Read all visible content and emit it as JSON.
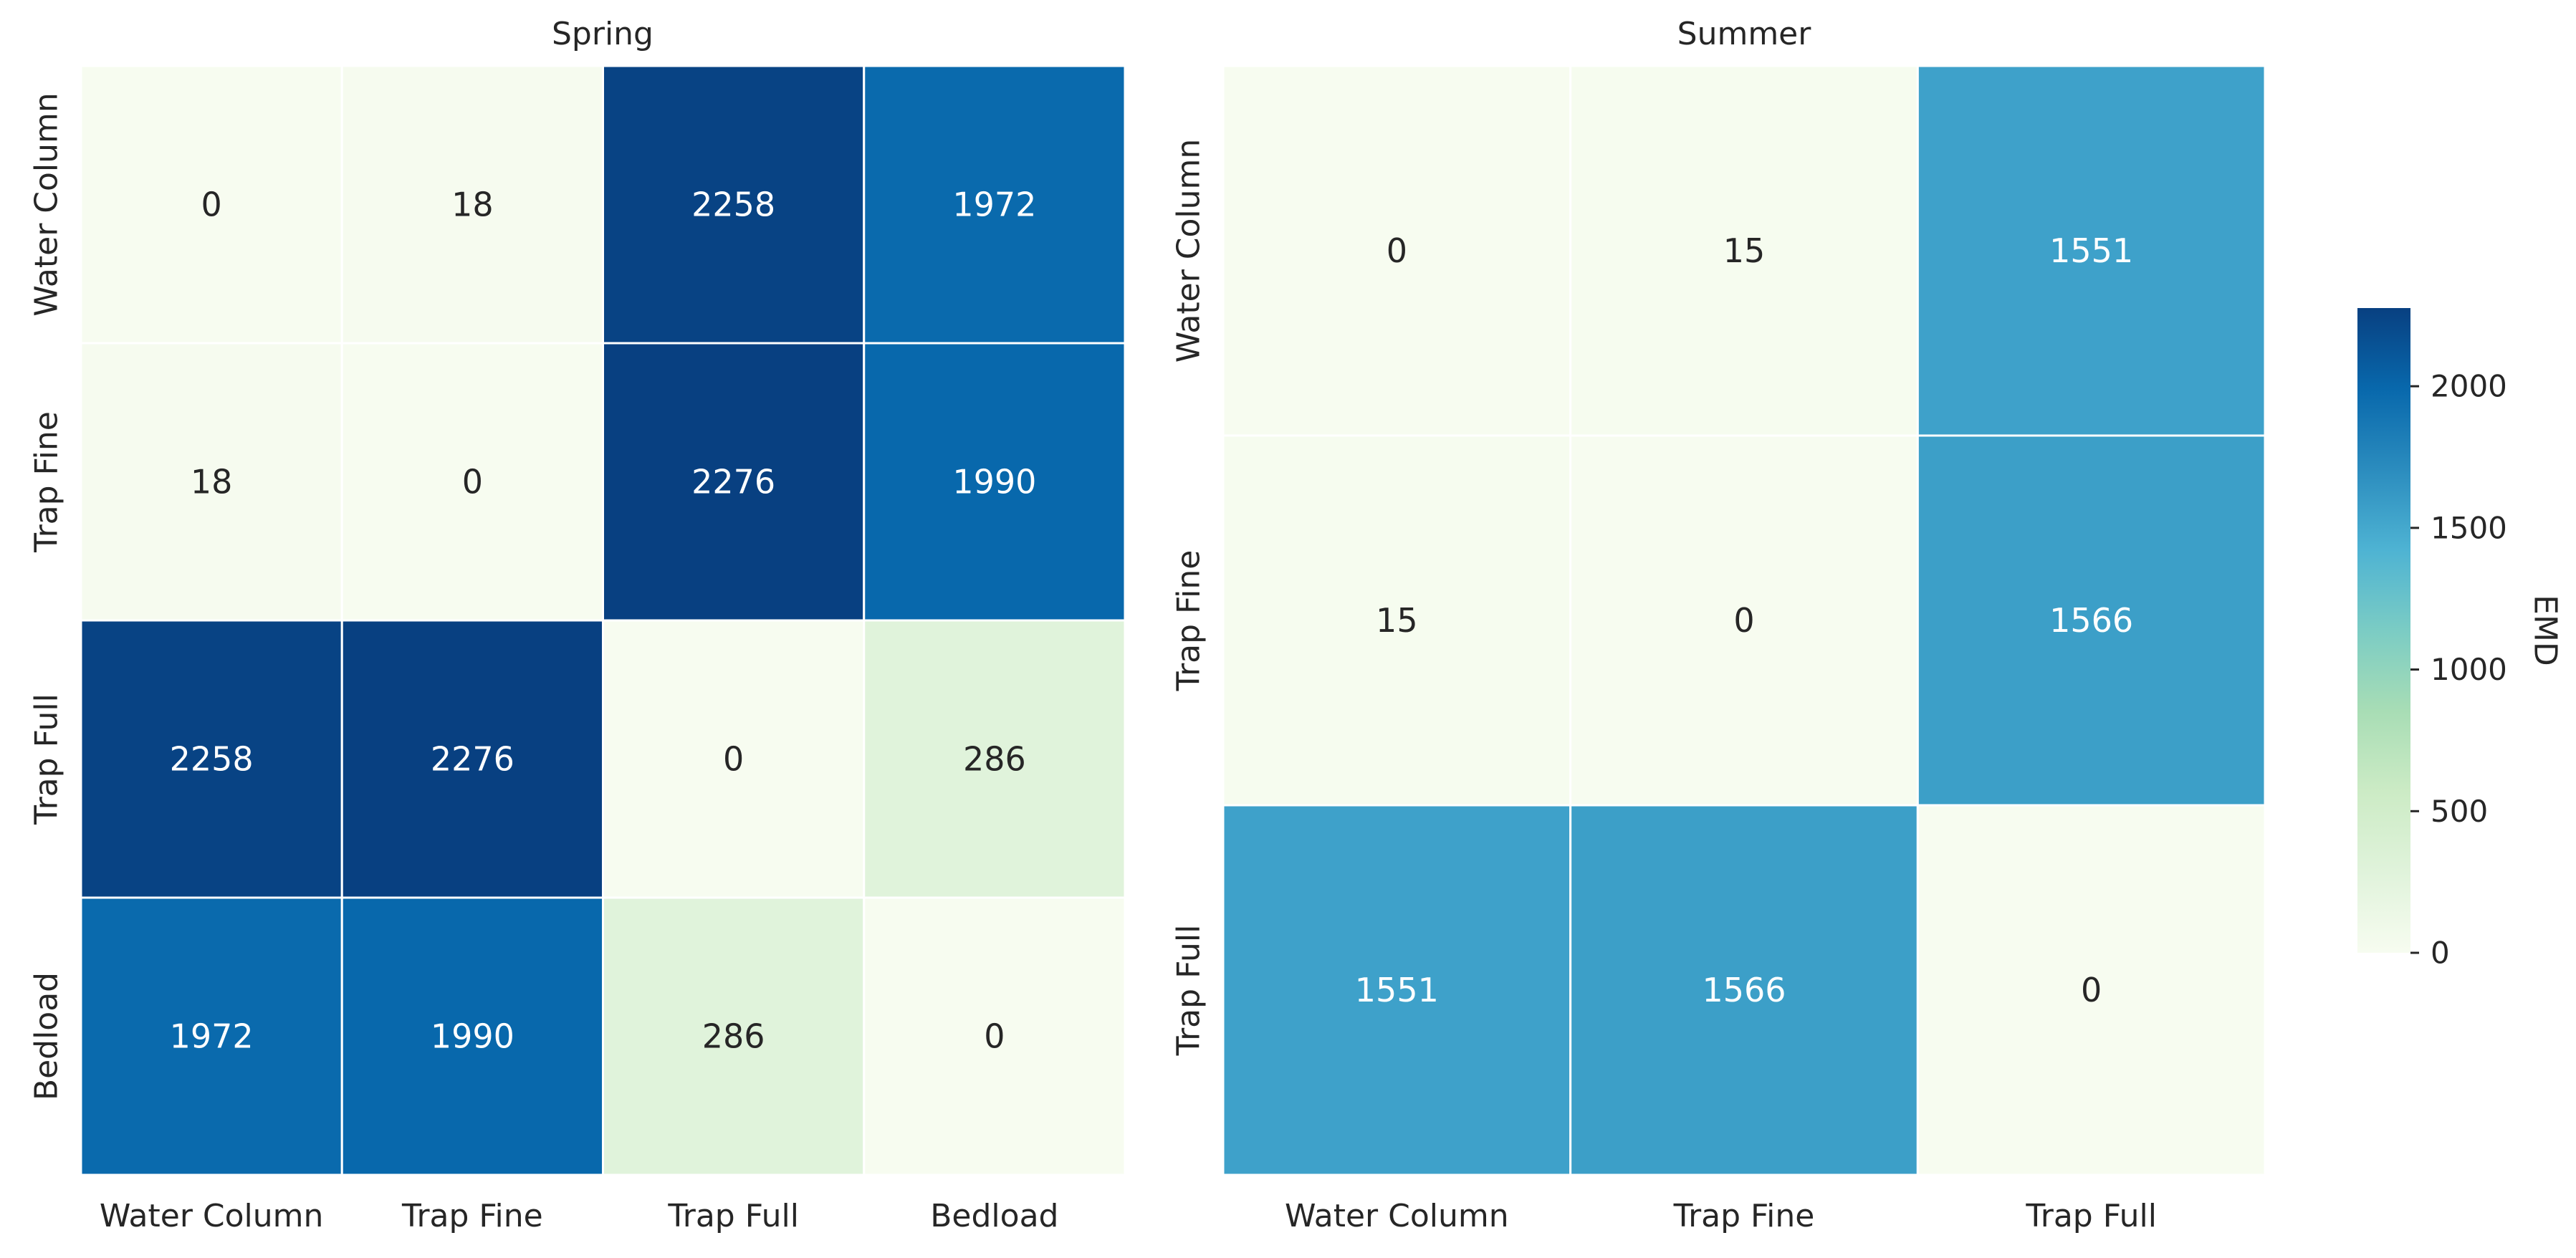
{
  "colorbar": {
    "label": "EMD",
    "vmin": 0,
    "vmax": 2276,
    "ticks": [
      0,
      500,
      1000,
      1500,
      2000
    ],
    "colormap": "GnBu",
    "colormap_stops": [
      "#f7fcf0",
      "#e0f3db",
      "#ccebc5",
      "#a8ddb5",
      "#7bccc4",
      "#4eb3d3",
      "#2b8cbe",
      "#0868ac",
      "#084081"
    ]
  },
  "chart_data": [
    {
      "type": "heatmap",
      "title": "Spring",
      "x_categories": [
        "Water Column",
        "Trap Fine",
        "Trap Full",
        "Bedload"
      ],
      "y_categories": [
        "Water Column",
        "Trap Fine",
        "Trap Full",
        "Bedload"
      ],
      "values": [
        [
          0,
          18,
          2258,
          1972
        ],
        [
          18,
          0,
          2276,
          1990
        ],
        [
          2258,
          2276,
          0,
          286
        ],
        [
          1972,
          1990,
          286,
          0
        ]
      ]
    },
    {
      "type": "heatmap",
      "title": "Summer",
      "x_categories": [
        "Water Column",
        "Trap Fine",
        "Trap Full"
      ],
      "y_categories": [
        "Water Column",
        "Trap Fine",
        "Trap Full"
      ],
      "values": [
        [
          0,
          15,
          1551
        ],
        [
          15,
          0,
          1566
        ],
        [
          1551,
          1566,
          0
        ]
      ]
    }
  ]
}
